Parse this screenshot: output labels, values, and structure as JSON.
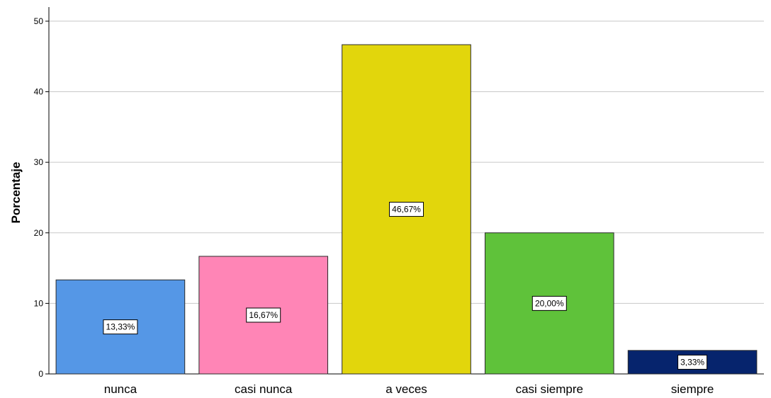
{
  "chart_data": {
    "type": "bar",
    "title": "",
    "ylabel": "Porcentaje",
    "xlabel": "",
    "ylim": [
      0,
      52
    ],
    "yticks": [
      "0",
      "10",
      "20",
      "30",
      "40",
      "50"
    ],
    "grid": true,
    "categories": [
      "nunca",
      "casi nunca",
      "a veces",
      "casi siempre",
      "siempre"
    ],
    "values": [
      13.33,
      16.67,
      46.67,
      20.0,
      3.33
    ],
    "data_labels": [
      "13,33%",
      "16,67%",
      "46,67%",
      "20,00%",
      "3,33%"
    ],
    "colors": [
      "#5597e6",
      "#ff85b6",
      "#e2d60c",
      "#5fc23a",
      "#06246d"
    ]
  }
}
